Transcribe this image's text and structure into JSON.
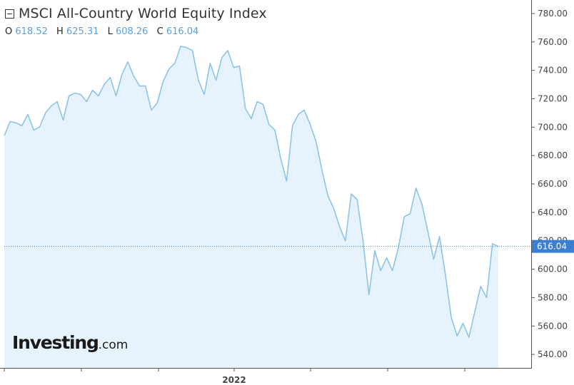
{
  "header": {
    "title": "MSCI All-Country World Equity Index",
    "ohlc": {
      "o_label": "O",
      "o_value": "618.52",
      "h_label": "H",
      "h_value": "625.31",
      "l_label": "L",
      "l_value": "608.26",
      "c_label": "C",
      "c_value": "616.04"
    }
  },
  "branding": {
    "logo_main": "Investing",
    "logo_tld": ".com"
  },
  "colors": {
    "line": "#8ec3e8",
    "fill": "#e6f3fc",
    "last_price": "#3b7fd0",
    "axis": "#555555"
  },
  "chart_data": {
    "type": "area",
    "title": "MSCI All-Country World Equity Index",
    "x_tick_labels": [
      "",
      "",
      "",
      "2022",
      "",
      "",
      ""
    ],
    "y_ticks": [
      "540.00",
      "560.00",
      "580.00",
      "600.00",
      "620.00",
      "640.00",
      "660.00",
      "680.00",
      "700.00",
      "720.00",
      "740.00",
      "760.00",
      "780.00"
    ],
    "ylim": [
      525,
      786
    ],
    "last_price_label": "616.04",
    "last_price": 616.04,
    "grid": false,
    "values": [
      694,
      704,
      703,
      701,
      709,
      698,
      700,
      710,
      715,
      718,
      705,
      722,
      724,
      723,
      718,
      726,
      722,
      730,
      735,
      722,
      737,
      746,
      736,
      729,
      729,
      712,
      717,
      732,
      741,
      745,
      757,
      756,
      754,
      733,
      723,
      745,
      733,
      749,
      754,
      742,
      743,
      713,
      706,
      718,
      716,
      702,
      698,
      678,
      662,
      701,
      709,
      712,
      702,
      690,
      670,
      652,
      643,
      630,
      620,
      653,
      649,
      620,
      582,
      613,
      599,
      608,
      599,
      615,
      637,
      639,
      657,
      646,
      627,
      607,
      623,
      596,
      566,
      553,
      562,
      552,
      570,
      588,
      580,
      618,
      616
    ]
  }
}
